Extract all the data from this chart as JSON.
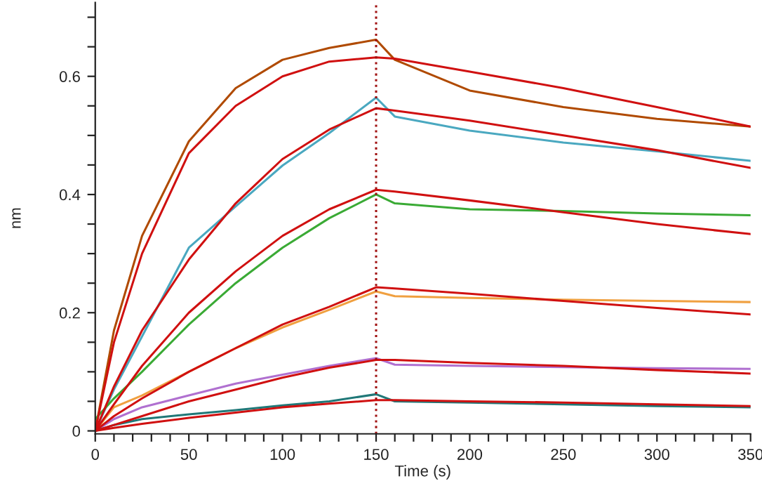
{
  "chart_data": {
    "type": "line",
    "xlabel": "Time (s)",
    "ylabel": "nm",
    "x": [
      0,
      10,
      25,
      50,
      75,
      100,
      125,
      150,
      160,
      200,
      250,
      300,
      350
    ],
    "xlim": [
      0,
      350
    ],
    "ylim": [
      -0.005,
      0.725
    ],
    "xticks": [
      0,
      {
        "value": 10,
        "label": null
      },
      {
        "value": 20,
        "label": null
      },
      {
        "value": 30,
        "label": null
      },
      {
        "value": 40,
        "label": null
      },
      50,
      {
        "value": 60,
        "label": null
      },
      {
        "value": 70,
        "label": null
      },
      {
        "value": 80,
        "label": null
      },
      {
        "value": 90,
        "label": null
      },
      100,
      {
        "value": 110,
        "label": null
      },
      {
        "value": 120,
        "label": null
      },
      {
        "value": 130,
        "label": null
      },
      {
        "value": 140,
        "label": null
      },
      150,
      {
        "value": 160,
        "label": null
      },
      {
        "value": 170,
        "label": null
      },
      {
        "value": 180,
        "label": null
      },
      {
        "value": 190,
        "label": null
      },
      200,
      {
        "value": 210,
        "label": null
      },
      {
        "value": 220,
        "label": null
      },
      {
        "value": 230,
        "label": null
      },
      {
        "value": 240,
        "label": null
      },
      250,
      {
        "value": 260,
        "label": null
      },
      {
        "value": 270,
        "label": null
      },
      {
        "value": 280,
        "label": null
      },
      {
        "value": 290,
        "label": null
      },
      300,
      {
        "value": 310,
        "label": null
      },
      {
        "value": 320,
        "label": null
      },
      {
        "value": 330,
        "label": null
      },
      {
        "value": 340,
        "label": null
      },
      350
    ],
    "yticks": [
      0,
      {
        "value": 0.05,
        "label": null
      },
      {
        "value": 0.1,
        "label": null
      },
      {
        "value": 0.15,
        "label": null
      },
      0.2,
      {
        "value": 0.25,
        "label": null
      },
      {
        "value": 0.3,
        "label": null
      },
      {
        "value": 0.35,
        "label": null
      },
      0.4,
      {
        "value": 0.45,
        "label": null
      },
      {
        "value": 0.5,
        "label": null
      },
      {
        "value": 0.55,
        "label": null
      },
      0.6,
      {
        "value": 0.65,
        "label": null
      },
      {
        "value": 0.7,
        "label": null
      }
    ],
    "grid": false,
    "legend": false,
    "marker": "none",
    "line_style": "solid",
    "ref_lines": [
      {
        "axis": "x",
        "value": 150,
        "color": "#a01010",
        "line_style": "dotted"
      }
    ],
    "series": [
      {
        "color": "#b04a00",
        "values": [
          0,
          0.17,
          0.33,
          0.49,
          0.58,
          0.628,
          0.648,
          0.662,
          0.628,
          0.576,
          0.548,
          0.528,
          0.515
        ]
      },
      {
        "color": "#4aa8c0",
        "values": [
          0,
          0.07,
          0.16,
          0.31,
          0.38,
          0.449,
          0.504,
          0.564,
          0.532,
          0.508,
          0.488,
          0.473,
          0.457
        ]
      },
      {
        "color": "#3aaa35",
        "values": [
          0.02,
          0.055,
          0.1,
          0.18,
          0.25,
          0.31,
          0.36,
          0.4,
          0.385,
          0.375,
          0.372,
          0.368,
          0.365
        ]
      },
      {
        "color": "#f0a040",
        "values": [
          0,
          0.04,
          0.06,
          0.1,
          0.14,
          0.175,
          0.205,
          0.236,
          0.228,
          0.225,
          0.222,
          0.22,
          0.218
        ]
      },
      {
        "color": "#b070d0",
        "values": [
          0,
          0.02,
          0.04,
          0.06,
          0.08,
          0.095,
          0.11,
          0.123,
          0.112,
          0.11,
          0.108,
          0.106,
          0.105
        ]
      },
      {
        "color": "#207878",
        "values": [
          0,
          0.01,
          0.02,
          0.028,
          0.035,
          0.043,
          0.05,
          0.062,
          0.05,
          0.048,
          0.045,
          0.042,
          0.04
        ]
      },
      {
        "color": "#d01010",
        "values": [
          0,
          0.15,
          0.3,
          0.47,
          0.55,
          0.6,
          0.625,
          0.632,
          0.63,
          0.608,
          0.58,
          0.548,
          0.515
        ]
      },
      {
        "color": "#d01010",
        "values": [
          0,
          0.075,
          0.17,
          0.29,
          0.385,
          0.46,
          0.51,
          0.546,
          0.542,
          0.525,
          0.5,
          0.475,
          0.445
        ]
      },
      {
        "color": "#d01010",
        "values": [
          0,
          0.045,
          0.11,
          0.2,
          0.27,
          0.33,
          0.375,
          0.408,
          0.405,
          0.39,
          0.37,
          0.35,
          0.333
        ]
      },
      {
        "color": "#d01010",
        "values": [
          0,
          0.025,
          0.055,
          0.1,
          0.14,
          0.18,
          0.21,
          0.243,
          0.241,
          0.232,
          0.22,
          0.208,
          0.197
        ]
      },
      {
        "color": "#d01010",
        "values": [
          0,
          0.01,
          0.025,
          0.05,
          0.07,
          0.09,
          0.107,
          0.12,
          0.12,
          0.115,
          0.11,
          0.103,
          0.097
        ]
      },
      {
        "color": "#d01010",
        "values": [
          0,
          0.005,
          0.012,
          0.022,
          0.031,
          0.04,
          0.046,
          0.052,
          0.052,
          0.05,
          0.048,
          0.045,
          0.042
        ]
      }
    ]
  }
}
